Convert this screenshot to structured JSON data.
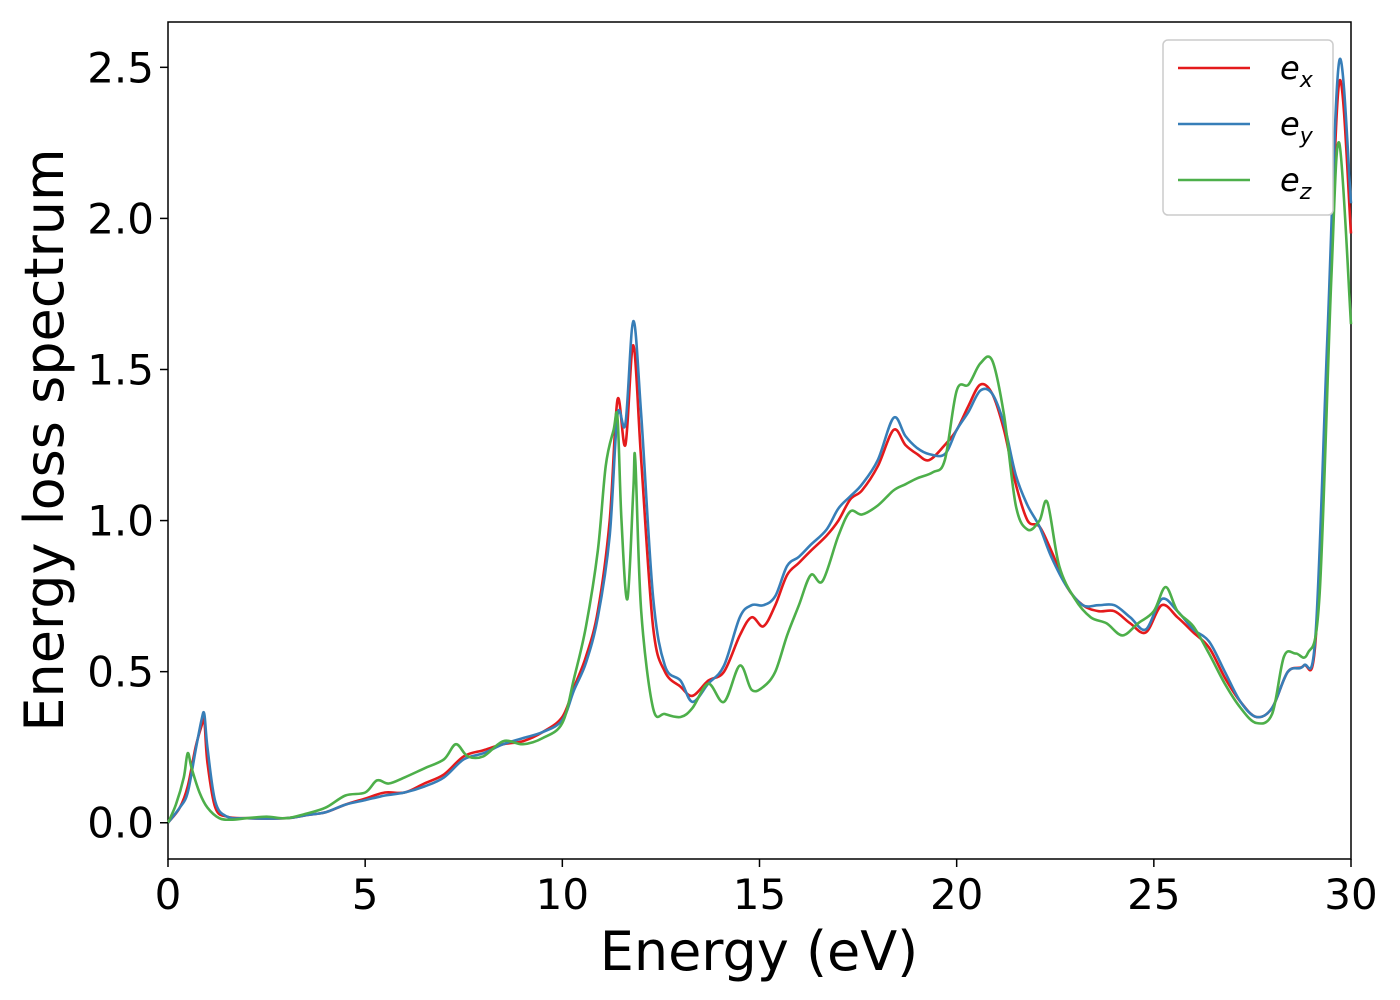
{
  "chart_data": {
    "type": "line",
    "title": "",
    "xlabel": "Energy (eV)",
    "ylabel": "Energy loss spectrum",
    "xlim": [
      0,
      30
    ],
    "ylim": [
      -0.12,
      2.65
    ],
    "xticks": [
      0,
      5,
      10,
      15,
      20,
      25,
      30
    ],
    "xtick_labels": [
      "0",
      "5",
      "10",
      "15",
      "20",
      "25",
      "30"
    ],
    "yticks": [
      0.0,
      0.5,
      1.0,
      1.5,
      2.0,
      2.5
    ],
    "ytick_labels": [
      "0.0",
      "0.5",
      "1.0",
      "1.5",
      "2.0",
      "2.5"
    ],
    "grid": false,
    "legend_position": "top-right",
    "series": [
      {
        "name": "e",
        "subscript": "x",
        "color": "#e41a1c",
        "points": [
          [
            0,
            0
          ],
          [
            0.3,
            0.05
          ],
          [
            0.5,
            0.12
          ],
          [
            0.7,
            0.25
          ],
          [
            0.85,
            0.32
          ],
          [
            0.92,
            0.34
          ],
          [
            1.0,
            0.2
          ],
          [
            1.2,
            0.05
          ],
          [
            1.5,
            0.02
          ],
          [
            2,
            0.015
          ],
          [
            3,
            0.015
          ],
          [
            3.5,
            0.025
          ],
          [
            4,
            0.035
          ],
          [
            4.5,
            0.06
          ],
          [
            5,
            0.08
          ],
          [
            5.5,
            0.1
          ],
          [
            6,
            0.1
          ],
          [
            6.5,
            0.13
          ],
          [
            7,
            0.16
          ],
          [
            7.5,
            0.22
          ],
          [
            8,
            0.24
          ],
          [
            8.5,
            0.26
          ],
          [
            9,
            0.27
          ],
          [
            9.5,
            0.3
          ],
          [
            10,
            0.35
          ],
          [
            10.3,
            0.45
          ],
          [
            10.6,
            0.55
          ],
          [
            10.9,
            0.7
          ],
          [
            11.2,
            1.0
          ],
          [
            11.4,
            1.4
          ],
          [
            11.6,
            1.25
          ],
          [
            11.8,
            1.58
          ],
          [
            12.0,
            1.2
          ],
          [
            12.3,
            0.65
          ],
          [
            12.6,
            0.5
          ],
          [
            13,
            0.45
          ],
          [
            13.3,
            0.42
          ],
          [
            13.7,
            0.47
          ],
          [
            14.1,
            0.5
          ],
          [
            14.5,
            0.62
          ],
          [
            14.8,
            0.68
          ],
          [
            15.1,
            0.65
          ],
          [
            15.4,
            0.72
          ],
          [
            15.7,
            0.82
          ],
          [
            16.0,
            0.86
          ],
          [
            16.3,
            0.9
          ],
          [
            16.7,
            0.95
          ],
          [
            17.0,
            1.0
          ],
          [
            17.3,
            1.07
          ],
          [
            17.6,
            1.1
          ],
          [
            18.0,
            1.18
          ],
          [
            18.4,
            1.3
          ],
          [
            18.7,
            1.25
          ],
          [
            19.0,
            1.22
          ],
          [
            19.3,
            1.2
          ],
          [
            19.7,
            1.25
          ],
          [
            20.0,
            1.3
          ],
          [
            20.3,
            1.38
          ],
          [
            20.6,
            1.45
          ],
          [
            20.9,
            1.42
          ],
          [
            21.2,
            1.3
          ],
          [
            21.5,
            1.12
          ],
          [
            21.8,
            1.0
          ],
          [
            22.1,
            0.98
          ],
          [
            22.4,
            0.9
          ],
          [
            22.8,
            0.78
          ],
          [
            23.2,
            0.72
          ],
          [
            23.6,
            0.7
          ],
          [
            24.0,
            0.7
          ],
          [
            24.4,
            0.66
          ],
          [
            24.8,
            0.63
          ],
          [
            25.2,
            0.72
          ],
          [
            25.6,
            0.68
          ],
          [
            26.0,
            0.63
          ],
          [
            26.4,
            0.58
          ],
          [
            26.8,
            0.48
          ],
          [
            27.2,
            0.4
          ],
          [
            27.6,
            0.35
          ],
          [
            28.0,
            0.38
          ],
          [
            28.4,
            0.5
          ],
          [
            28.8,
            0.52
          ],
          [
            29.1,
            0.6
          ],
          [
            29.4,
            1.5
          ],
          [
            29.7,
            2.45
          ],
          [
            30.0,
            1.95
          ]
        ]
      },
      {
        "name": "e",
        "subscript": "y",
        "color": "#377eb8",
        "points": [
          [
            0,
            0
          ],
          [
            0.3,
            0.05
          ],
          [
            0.5,
            0.1
          ],
          [
            0.7,
            0.24
          ],
          [
            0.85,
            0.34
          ],
          [
            0.92,
            0.36
          ],
          [
            1.0,
            0.25
          ],
          [
            1.2,
            0.07
          ],
          [
            1.5,
            0.02
          ],
          [
            2,
            0.015
          ],
          [
            3,
            0.015
          ],
          [
            3.5,
            0.025
          ],
          [
            4,
            0.035
          ],
          [
            4.5,
            0.06
          ],
          [
            5,
            0.075
          ],
          [
            5.5,
            0.09
          ],
          [
            6,
            0.1
          ],
          [
            6.5,
            0.12
          ],
          [
            7,
            0.15
          ],
          [
            7.5,
            0.21
          ],
          [
            8,
            0.23
          ],
          [
            8.5,
            0.26
          ],
          [
            9,
            0.28
          ],
          [
            9.5,
            0.3
          ],
          [
            10,
            0.34
          ],
          [
            10.3,
            0.44
          ],
          [
            10.6,
            0.53
          ],
          [
            10.9,
            0.68
          ],
          [
            11.2,
            0.95
          ],
          [
            11.4,
            1.35
          ],
          [
            11.6,
            1.32
          ],
          [
            11.8,
            1.66
          ],
          [
            12.0,
            1.35
          ],
          [
            12.3,
            0.75
          ],
          [
            12.6,
            0.52
          ],
          [
            13,
            0.47
          ],
          [
            13.3,
            0.4
          ],
          [
            13.7,
            0.46
          ],
          [
            14.1,
            0.52
          ],
          [
            14.5,
            0.68
          ],
          [
            14.8,
            0.72
          ],
          [
            15.1,
            0.72
          ],
          [
            15.4,
            0.75
          ],
          [
            15.7,
            0.85
          ],
          [
            16.0,
            0.88
          ],
          [
            16.3,
            0.92
          ],
          [
            16.7,
            0.97
          ],
          [
            17.0,
            1.04
          ],
          [
            17.3,
            1.08
          ],
          [
            17.6,
            1.12
          ],
          [
            18.0,
            1.2
          ],
          [
            18.4,
            1.34
          ],
          [
            18.7,
            1.28
          ],
          [
            19.0,
            1.24
          ],
          [
            19.3,
            1.22
          ],
          [
            19.7,
            1.22
          ],
          [
            20.0,
            1.3
          ],
          [
            20.3,
            1.36
          ],
          [
            20.6,
            1.43
          ],
          [
            20.9,
            1.42
          ],
          [
            21.2,
            1.32
          ],
          [
            21.5,
            1.15
          ],
          [
            21.8,
            1.05
          ],
          [
            22.1,
            0.98
          ],
          [
            22.4,
            0.88
          ],
          [
            22.8,
            0.78
          ],
          [
            23.2,
            0.72
          ],
          [
            23.6,
            0.72
          ],
          [
            24.0,
            0.72
          ],
          [
            24.4,
            0.68
          ],
          [
            24.8,
            0.64
          ],
          [
            25.2,
            0.74
          ],
          [
            25.6,
            0.7
          ],
          [
            26.0,
            0.64
          ],
          [
            26.4,
            0.6
          ],
          [
            26.8,
            0.5
          ],
          [
            27.2,
            0.4
          ],
          [
            27.6,
            0.35
          ],
          [
            28.0,
            0.38
          ],
          [
            28.4,
            0.5
          ],
          [
            28.8,
            0.52
          ],
          [
            29.1,
            0.62
          ],
          [
            29.4,
            1.6
          ],
          [
            29.7,
            2.52
          ],
          [
            30.0,
            2.05
          ]
        ]
      },
      {
        "name": "e",
        "subscript": "z",
        "color": "#4daf4a",
        "points": [
          [
            0,
            0
          ],
          [
            0.2,
            0.06
          ],
          [
            0.4,
            0.15
          ],
          [
            0.5,
            0.23
          ],
          [
            0.6,
            0.18
          ],
          [
            0.8,
            0.1
          ],
          [
            1.0,
            0.05
          ],
          [
            1.3,
            0.015
          ],
          [
            1.6,
            0.01
          ],
          [
            2,
            0.015
          ],
          [
            2.5,
            0.02
          ],
          [
            3,
            0.015
          ],
          [
            3.5,
            0.03
          ],
          [
            4,
            0.05
          ],
          [
            4.5,
            0.09
          ],
          [
            5,
            0.1
          ],
          [
            5.3,
            0.14
          ],
          [
            5.6,
            0.13
          ],
          [
            6,
            0.15
          ],
          [
            6.5,
            0.18
          ],
          [
            7,
            0.21
          ],
          [
            7.3,
            0.26
          ],
          [
            7.6,
            0.22
          ],
          [
            8,
            0.22
          ],
          [
            8.5,
            0.27
          ],
          [
            9,
            0.26
          ],
          [
            9.5,
            0.28
          ],
          [
            10,
            0.33
          ],
          [
            10.3,
            0.48
          ],
          [
            10.6,
            0.65
          ],
          [
            10.9,
            0.9
          ],
          [
            11.1,
            1.18
          ],
          [
            11.3,
            1.3
          ],
          [
            11.4,
            1.34
          ],
          [
            11.5,
            1.0
          ],
          [
            11.65,
            0.74
          ],
          [
            11.8,
            1.1
          ],
          [
            11.85,
            1.2
          ],
          [
            12.0,
            0.7
          ],
          [
            12.3,
            0.38
          ],
          [
            12.6,
            0.36
          ],
          [
            13,
            0.35
          ],
          [
            13.3,
            0.38
          ],
          [
            13.7,
            0.46
          ],
          [
            14.1,
            0.4
          ],
          [
            14.5,
            0.52
          ],
          [
            14.8,
            0.44
          ],
          [
            15.1,
            0.45
          ],
          [
            15.4,
            0.5
          ],
          [
            15.7,
            0.62
          ],
          [
            16.0,
            0.72
          ],
          [
            16.3,
            0.82
          ],
          [
            16.6,
            0.8
          ],
          [
            17.0,
            0.95
          ],
          [
            17.3,
            1.03
          ],
          [
            17.6,
            1.02
          ],
          [
            18.0,
            1.05
          ],
          [
            18.4,
            1.1
          ],
          [
            18.7,
            1.12
          ],
          [
            19.0,
            1.14
          ],
          [
            19.4,
            1.16
          ],
          [
            19.7,
            1.2
          ],
          [
            20.0,
            1.43
          ],
          [
            20.3,
            1.45
          ],
          [
            20.6,
            1.52
          ],
          [
            20.9,
            1.53
          ],
          [
            21.2,
            1.35
          ],
          [
            21.5,
            1.05
          ],
          [
            21.8,
            0.97
          ],
          [
            22.1,
            1.0
          ],
          [
            22.3,
            1.06
          ],
          [
            22.6,
            0.85
          ],
          [
            23.0,
            0.74
          ],
          [
            23.4,
            0.68
          ],
          [
            23.8,
            0.66
          ],
          [
            24.2,
            0.62
          ],
          [
            24.6,
            0.66
          ],
          [
            25.0,
            0.7
          ],
          [
            25.3,
            0.78
          ],
          [
            25.6,
            0.7
          ],
          [
            26.0,
            0.65
          ],
          [
            26.4,
            0.56
          ],
          [
            26.8,
            0.46
          ],
          [
            27.2,
            0.38
          ],
          [
            27.6,
            0.33
          ],
          [
            28.0,
            0.36
          ],
          [
            28.3,
            0.55
          ],
          [
            28.6,
            0.56
          ],
          [
            28.9,
            0.56
          ],
          [
            29.2,
            0.75
          ],
          [
            29.5,
            1.8
          ],
          [
            29.7,
            2.25
          ],
          [
            30.0,
            1.65
          ]
        ]
      }
    ]
  }
}
